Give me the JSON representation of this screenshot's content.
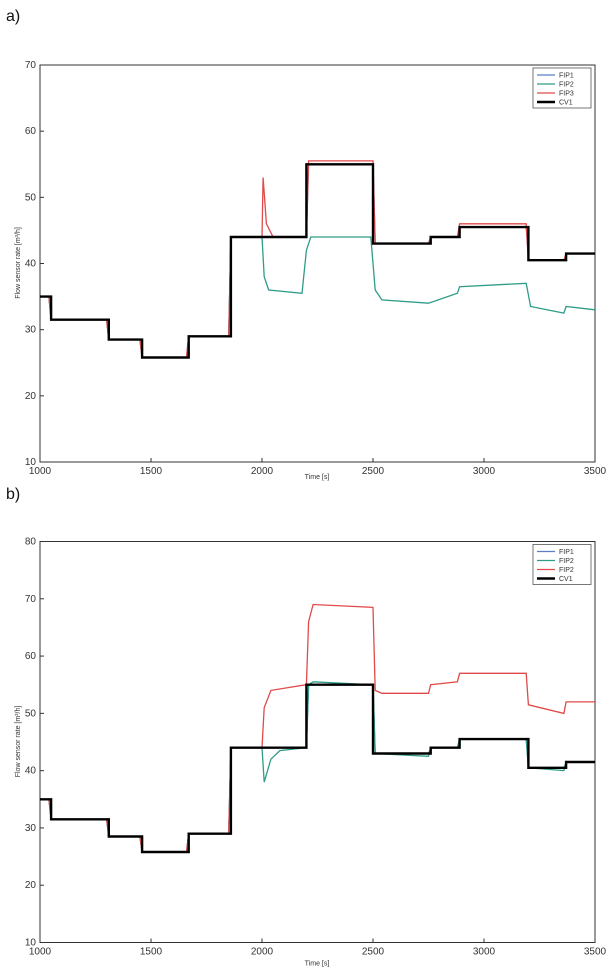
{
  "chart_data": [
    {
      "panel_label": "a)",
      "type": "line",
      "xlabel": "Time [s]",
      "ylabel": "Flow sensor rate [m³/h]",
      "xlim": [
        1000,
        3500
      ],
      "ylim": [
        10,
        70
      ],
      "xticks": [
        1000,
        1500,
        2000,
        2500,
        3000,
        3500
      ],
      "yticks": [
        10,
        20,
        30,
        40,
        50,
        60,
        70
      ],
      "legend_position": "top-right",
      "grid": false,
      "series": [
        {
          "name": "FIP1",
          "color": "#5a7fc0",
          "points": [
            [
              1000,
              35
            ],
            [
              1040,
              35
            ],
            [
              1050,
              31.5
            ],
            [
              1300,
              31.5
            ],
            [
              1310,
              28.5
            ],
            [
              1450,
              28.5
            ],
            [
              1460,
              25.8
            ],
            [
              1660,
              25.8
            ],
            [
              1670,
              29
            ],
            [
              1850,
              29
            ],
            [
              1860,
              44
            ],
            [
              2200,
              44
            ],
            [
              2210,
              55
            ],
            [
              2500,
              55
            ],
            [
              2510,
              43
            ],
            [
              2750,
              43
            ],
            [
              2760,
              44
            ],
            [
              2880,
              44
            ],
            [
              2890,
              45.5
            ],
            [
              3190,
              45.5
            ],
            [
              3200,
              40.5
            ],
            [
              3360,
              40.5
            ],
            [
              3370,
              41.5
            ],
            [
              3500,
              41.5
            ]
          ]
        },
        {
          "name": "FIP2",
          "color": "#2e9c88",
          "points": [
            [
              1000,
              35
            ],
            [
              1040,
              35
            ],
            [
              1050,
              31.5
            ],
            [
              1300,
              31.5
            ],
            [
              1310,
              28.5
            ],
            [
              1450,
              28.5
            ],
            [
              1460,
              25.8
            ],
            [
              1660,
              25.8
            ],
            [
              1670,
              29
            ],
            [
              1850,
              29
            ],
            [
              1860,
              44
            ],
            [
              2000,
              44
            ],
            [
              2010,
              38
            ],
            [
              2030,
              36
            ],
            [
              2180,
              35.5
            ],
            [
              2200,
              42
            ],
            [
              2220,
              44
            ],
            [
              2490,
              44
            ],
            [
              2510,
              36
            ],
            [
              2540,
              34.5
            ],
            [
              2750,
              34
            ],
            [
              2880,
              35.5
            ],
            [
              2890,
              36.5
            ],
            [
              3190,
              37
            ],
            [
              3210,
              33.5
            ],
            [
              3360,
              32.5
            ],
            [
              3370,
              33.5
            ],
            [
              3500,
              33
            ]
          ]
        },
        {
          "name": "FIP3",
          "color": "#e04a4a",
          "points": [
            [
              1000,
              35
            ],
            [
              1040,
              35
            ],
            [
              1050,
              31.5
            ],
            [
              1300,
              31.5
            ],
            [
              1310,
              28.5
            ],
            [
              1450,
              28.5
            ],
            [
              1460,
              25.8
            ],
            [
              1660,
              25.8
            ],
            [
              1670,
              29
            ],
            [
              1850,
              29
            ],
            [
              1860,
              44
            ],
            [
              2000,
              44
            ],
            [
              2005,
              53
            ],
            [
              2020,
              46
            ],
            [
              2050,
              44
            ],
            [
              2200,
              44
            ],
            [
              2210,
              55.5
            ],
            [
              2500,
              55.5
            ],
            [
              2510,
              43
            ],
            [
              2750,
              43
            ],
            [
              2760,
              44
            ],
            [
              2880,
              44
            ],
            [
              2890,
              46
            ],
            [
              3190,
              46
            ],
            [
              3200,
              40.5
            ],
            [
              3360,
              40.5
            ],
            [
              3370,
              41.5
            ],
            [
              3500,
              41.5
            ]
          ]
        },
        {
          "name": "CV1",
          "color": "#000000",
          "points": [
            [
              1000,
              35
            ],
            [
              1050,
              35
            ],
            [
              1050,
              31.5
            ],
            [
              1310,
              31.5
            ],
            [
              1310,
              28.5
            ],
            [
              1460,
              28.5
            ],
            [
              1460,
              25.8
            ],
            [
              1670,
              25.8
            ],
            [
              1670,
              29
            ],
            [
              1860,
              29
            ],
            [
              1860,
              44
            ],
            [
              2200,
              44
            ],
            [
              2200,
              55
            ],
            [
              2500,
              55
            ],
            [
              2500,
              43
            ],
            [
              2760,
              43
            ],
            [
              2760,
              44
            ],
            [
              2890,
              44
            ],
            [
              2890,
              45.5
            ],
            [
              3200,
              45.5
            ],
            [
              3200,
              40.5
            ],
            [
              3370,
              40.5
            ],
            [
              3370,
              41.5
            ],
            [
              3500,
              41.5
            ]
          ]
        }
      ]
    },
    {
      "panel_label": "b)",
      "type": "line",
      "xlabel": "Time [s]",
      "ylabel": "Flow sensor rate [m³/h]",
      "xlim": [
        1000,
        3500
      ],
      "ylim": [
        10,
        80
      ],
      "xticks": [
        1000,
        1500,
        2000,
        2500,
        3000,
        3500
      ],
      "yticks": [
        10,
        20,
        30,
        40,
        50,
        60,
        70,
        80
      ],
      "legend_position": "top-right",
      "grid": false,
      "series": [
        {
          "name": "FIP1",
          "color": "#5a7fc0",
          "points": [
            [
              1000,
              35
            ],
            [
              1040,
              35
            ],
            [
              1050,
              31.5
            ],
            [
              1300,
              31.5
            ],
            [
              1310,
              28.5
            ],
            [
              1450,
              28.5
            ],
            [
              1460,
              25.8
            ],
            [
              1660,
              25.8
            ],
            [
              1670,
              29
            ],
            [
              1850,
              29
            ],
            [
              1860,
              44
            ],
            [
              2200,
              44
            ],
            [
              2210,
              55
            ],
            [
              2500,
              55
            ],
            [
              2510,
              43
            ],
            [
              2750,
              43
            ],
            [
              2760,
              44
            ],
            [
              2880,
              44
            ],
            [
              2890,
              45.5
            ],
            [
              3190,
              45.5
            ],
            [
              3200,
              40.5
            ],
            [
              3360,
              40.5
            ],
            [
              3370,
              41.5
            ],
            [
              3500,
              41.5
            ]
          ]
        },
        {
          "name": "FIP2",
          "color": "#2e9c88",
          "points": [
            [
              1000,
              35
            ],
            [
              1040,
              35
            ],
            [
              1050,
              31.5
            ],
            [
              1300,
              31.5
            ],
            [
              1310,
              28.5
            ],
            [
              1450,
              28.5
            ],
            [
              1460,
              25.8
            ],
            [
              1660,
              25.8
            ],
            [
              1670,
              29
            ],
            [
              1850,
              29
            ],
            [
              1860,
              44
            ],
            [
              2000,
              44
            ],
            [
              2010,
              38
            ],
            [
              2040,
              42
            ],
            [
              2080,
              43.5
            ],
            [
              2200,
              44
            ],
            [
              2210,
              55
            ],
            [
              2230,
              55.5
            ],
            [
              2500,
              55
            ],
            [
              2510,
              43
            ],
            [
              2750,
              42.5
            ],
            [
              2760,
              44
            ],
            [
              2880,
              44
            ],
            [
              2890,
              45.5
            ],
            [
              3190,
              45.5
            ],
            [
              3200,
              40.5
            ],
            [
              3360,
              40
            ],
            [
              3370,
              41.5
            ],
            [
              3500,
              41.5
            ]
          ]
        },
        {
          "name": "FIP2",
          "color": "#e04a4a",
          "points": [
            [
              1000,
              35
            ],
            [
              1040,
              35
            ],
            [
              1050,
              31.5
            ],
            [
              1300,
              31.5
            ],
            [
              1310,
              28.5
            ],
            [
              1450,
              28.5
            ],
            [
              1460,
              25.8
            ],
            [
              1660,
              25.8
            ],
            [
              1670,
              29
            ],
            [
              1850,
              29
            ],
            [
              1860,
              44
            ],
            [
              2000,
              44
            ],
            [
              2010,
              51
            ],
            [
              2040,
              54
            ],
            [
              2200,
              55
            ],
            [
              2210,
              66
            ],
            [
              2230,
              69
            ],
            [
              2500,
              68.5
            ],
            [
              2510,
              54
            ],
            [
              2540,
              53.5
            ],
            [
              2750,
              53.5
            ],
            [
              2760,
              55
            ],
            [
              2880,
              55.5
            ],
            [
              2890,
              57
            ],
            [
              3190,
              57
            ],
            [
              3200,
              51.5
            ],
            [
              3360,
              50
            ],
            [
              3370,
              52
            ],
            [
              3500,
              52
            ]
          ]
        },
        {
          "name": "CV1",
          "color": "#000000",
          "points": [
            [
              1000,
              35
            ],
            [
              1050,
              35
            ],
            [
              1050,
              31.5
            ],
            [
              1310,
              31.5
            ],
            [
              1310,
              28.5
            ],
            [
              1460,
              28.5
            ],
            [
              1460,
              25.8
            ],
            [
              1670,
              25.8
            ],
            [
              1670,
              29
            ],
            [
              1860,
              29
            ],
            [
              1860,
              44
            ],
            [
              2200,
              44
            ],
            [
              2200,
              55
            ],
            [
              2500,
              55
            ],
            [
              2500,
              43
            ],
            [
              2760,
              43
            ],
            [
              2760,
              44
            ],
            [
              2890,
              44
            ],
            [
              2890,
              45.5
            ],
            [
              3200,
              45.5
            ],
            [
              3200,
              40.5
            ],
            [
              3370,
              40.5
            ],
            [
              3370,
              41.5
            ],
            [
              3500,
              41.5
            ]
          ]
        }
      ]
    }
  ]
}
